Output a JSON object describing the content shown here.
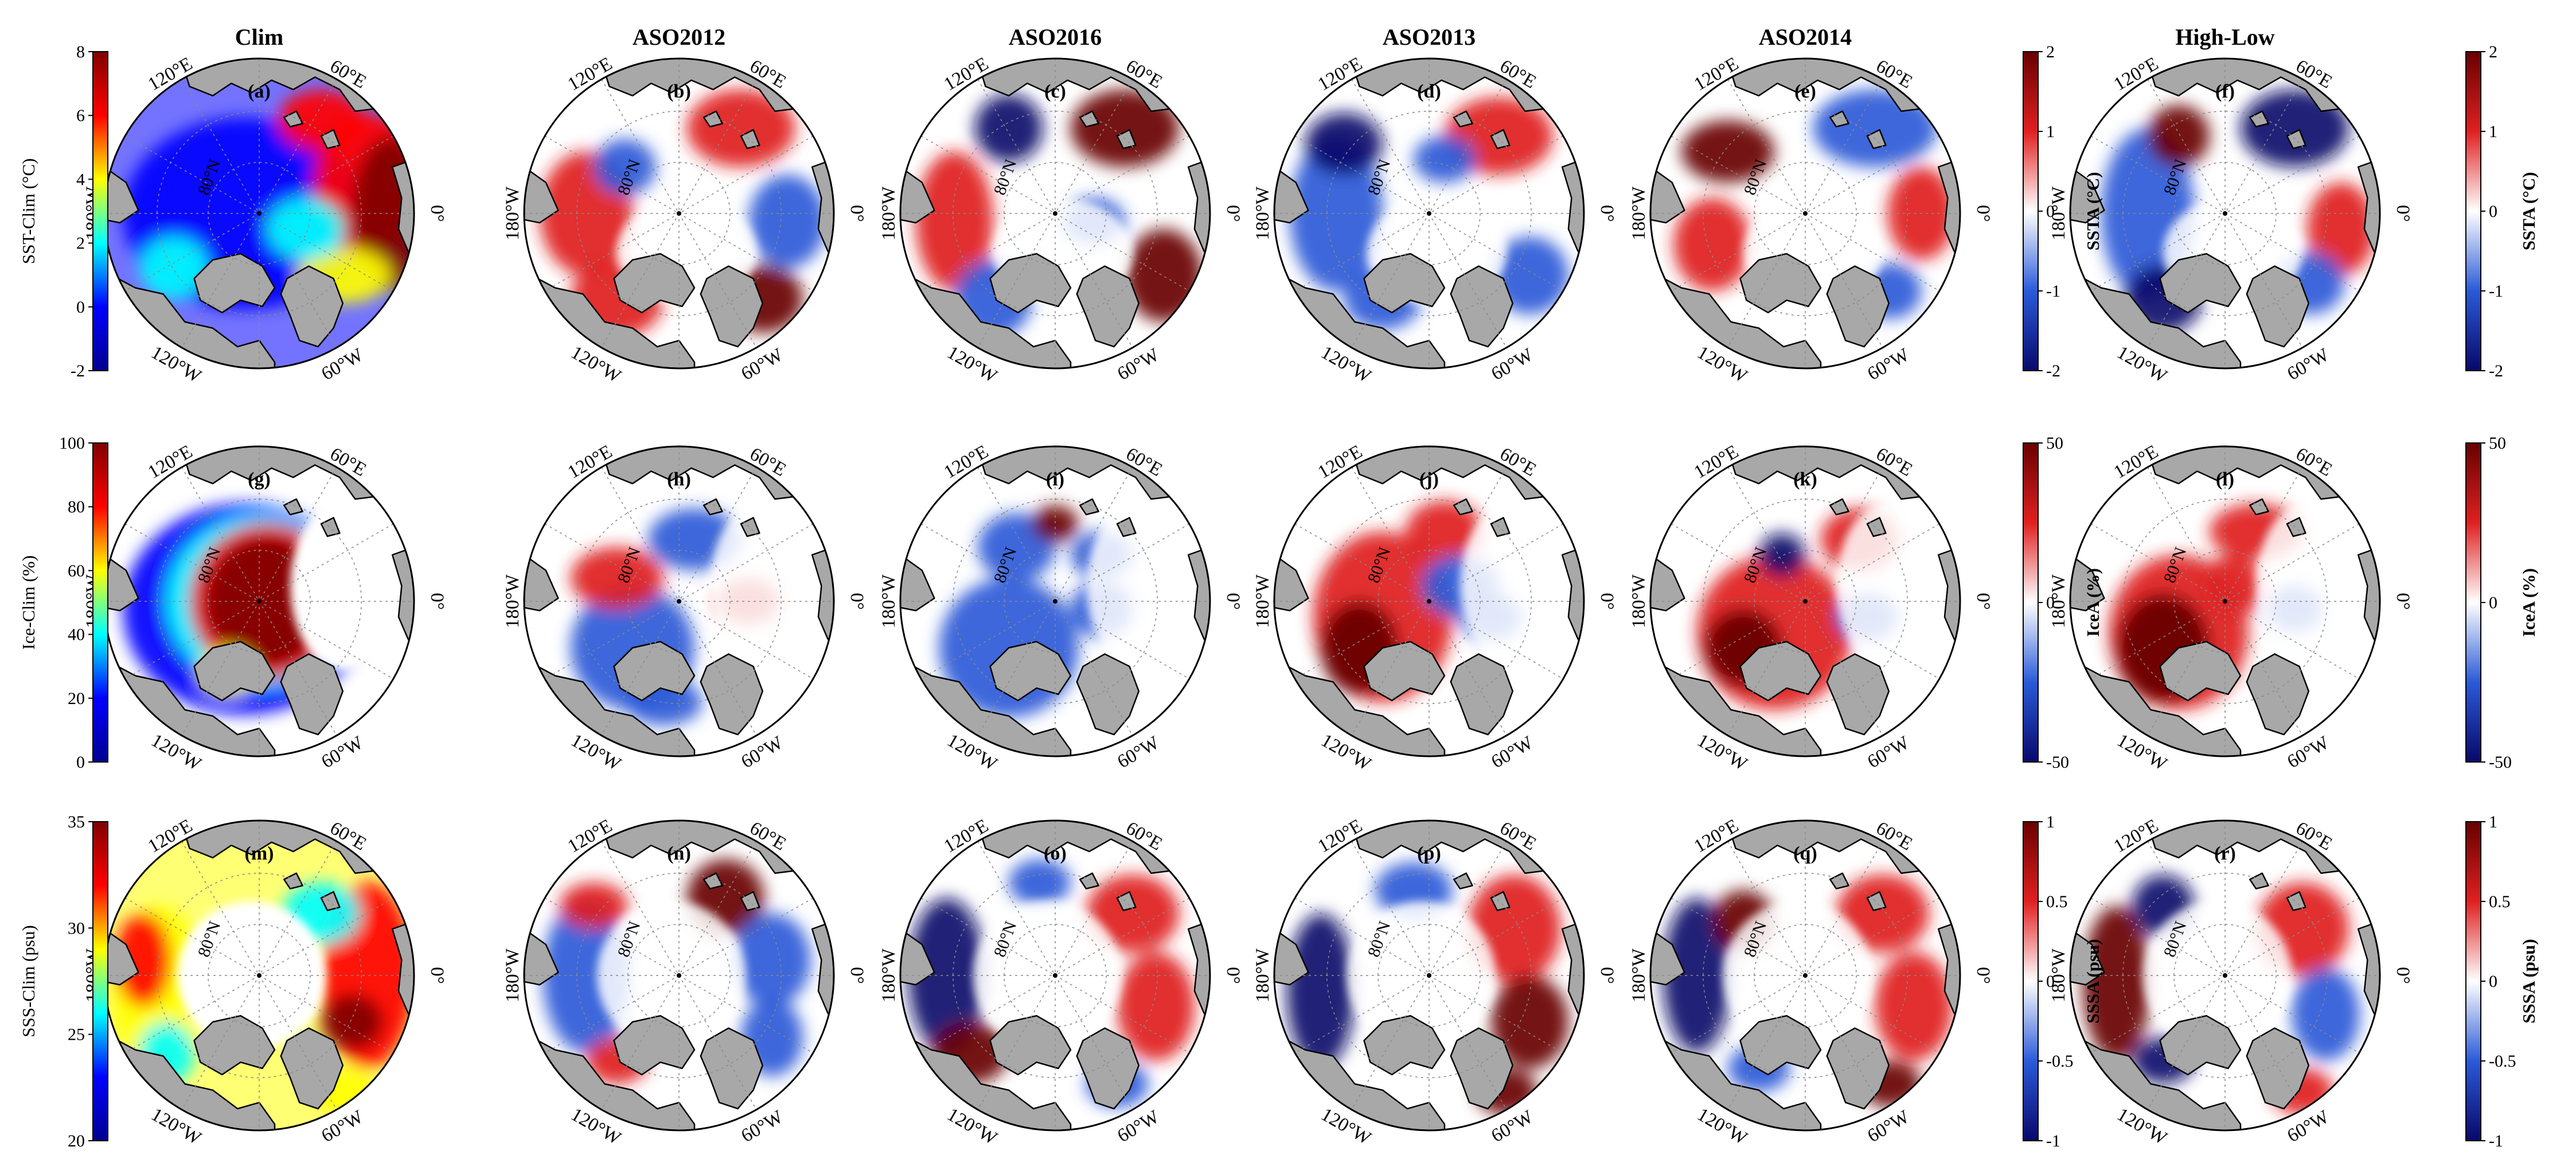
{
  "columns": [
    {
      "id": "clim",
      "title": "Clim"
    },
    {
      "id": "aso2012",
      "title": "ASO2012"
    },
    {
      "id": "aso2016",
      "title": "ASO2016"
    },
    {
      "id": "aso2013",
      "title": "ASO2013"
    },
    {
      "id": "aso2014",
      "title": "ASO2014"
    },
    {
      "id": "highlow",
      "title": "High-Low"
    }
  ],
  "rows": [
    {
      "id": "sst",
      "panel_labels": [
        "(a)",
        "(b)",
        "(c)",
        "(d)",
        "(e)",
        "(f)"
      ],
      "clim_colorbar": {
        "label": "SST-Clim (°C)",
        "ticks": [
          "8",
          "6",
          "4",
          "2",
          "0",
          "-2"
        ],
        "cmap": "jet"
      },
      "anom_colorbar": {
        "label": "SSTA (°C)",
        "ticks": [
          "2",
          "1",
          "0",
          "-1",
          "-2"
        ],
        "cmap": "bwr"
      },
      "diff_colorbar": {
        "label": "SSTA (°C)",
        "ticks": [
          "2",
          "1",
          "0",
          "-1",
          "-2"
        ],
        "cmap": "bwr"
      }
    },
    {
      "id": "ice",
      "panel_labels": [
        "(g)",
        "(h)",
        "(i)",
        "(j)",
        "(k)",
        "(l)"
      ],
      "clim_colorbar": {
        "label": "Ice-Clim (%)",
        "ticks": [
          "100",
          "80",
          "60",
          "40",
          "20",
          "0"
        ],
        "cmap": "jet"
      },
      "anom_colorbar": {
        "label": "IceA  (%)",
        "ticks": [
          "50",
          "0",
          "-50"
        ],
        "cmap": "bwr"
      },
      "diff_colorbar": {
        "label": "IceA (%)",
        "ticks": [
          "50",
          "0",
          "-50"
        ],
        "cmap": "bwr"
      }
    },
    {
      "id": "sss",
      "panel_labels": [
        "(m)",
        "(n)",
        "(o)",
        "(p)",
        "(q)",
        "(r)"
      ],
      "clim_colorbar": {
        "label": "SSS-Clim (psu)",
        "ticks": [
          "35",
          "30",
          "25",
          "20"
        ],
        "cmap": "jet"
      },
      "anom_colorbar": {
        "label": "SSSA (psu)",
        "ticks": [
          "1",
          "0.5",
          "0",
          "-0.5",
          "-1"
        ],
        "cmap": "bwr"
      },
      "diff_colorbar": {
        "label": "SSSA (psu)",
        "ticks": [
          "1",
          "0.5",
          "0",
          "-0.5",
          "-1"
        ],
        "cmap": "bwr"
      }
    }
  ],
  "lon_labels": {
    "top_left": "120°E",
    "top_right": "60°E",
    "left": "180°W",
    "right": "0°",
    "bottom_left": "120°W",
    "bottom_right": "60°W"
  },
  "lat_label": "80°N",
  "colors": {
    "land": "#a8a8a8",
    "coast": "#000000",
    "jet": [
      "#00008f",
      "#0000ff",
      "#00ffff",
      "#ffff00",
      "#ff0000",
      "#800000"
    ],
    "bwr": [
      "#08086b",
      "#2a5ad8",
      "#ffffff",
      "#e02020",
      "#680000"
    ]
  }
}
